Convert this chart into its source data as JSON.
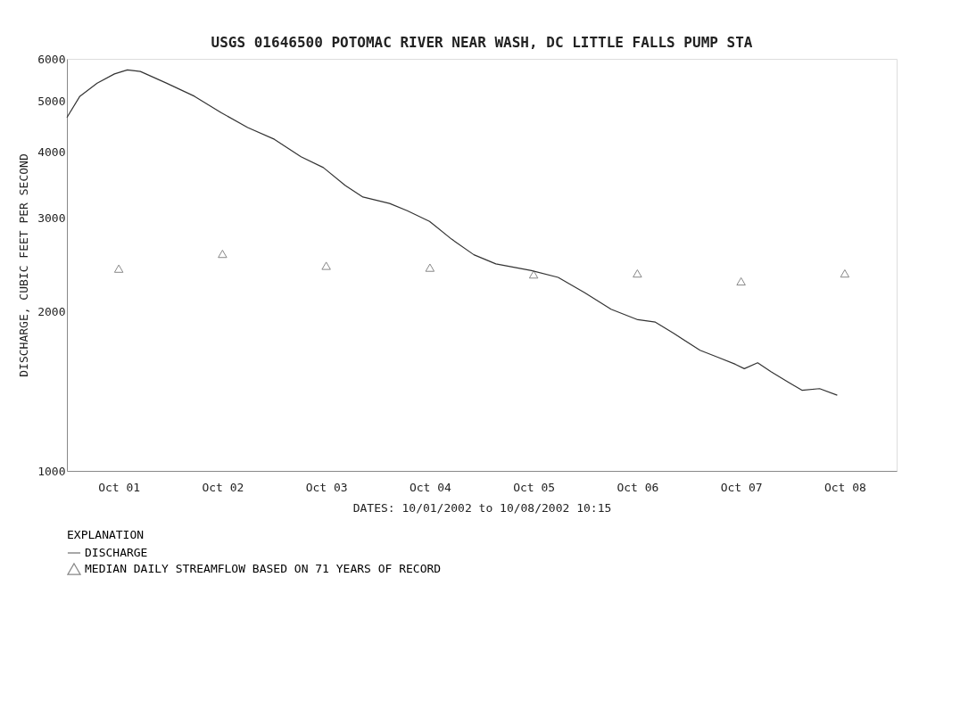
{
  "chart_data": {
    "type": "line",
    "title": "USGS 01646500 POTOMAC RIVER NEAR WASH, DC LITTLE FALLS PUMP STA",
    "xlabel": "DATES: 10/01/2002 to 10/08/2002 10:15",
    "ylabel": "DISCHARGE, CUBIC FEET PER SECOND",
    "legend_title": "EXPLANATION",
    "log": "y",
    "xlim": [
      "2002-10-01T00:00",
      "2002-10-09T00:00"
    ],
    "xticks": [
      {
        "value": "2002-10-01T12:00",
        "label": "Oct 01"
      },
      {
        "value": "2002-10-02T12:00",
        "label": "Oct 02"
      },
      {
        "value": "2002-10-03T12:00",
        "label": "Oct 03"
      },
      {
        "value": "2002-10-04T12:00",
        "label": "Oct 04"
      },
      {
        "value": "2002-10-05T12:00",
        "label": "Oct 05"
      },
      {
        "value": "2002-10-06T12:00",
        "label": "Oct 06"
      },
      {
        "value": "2002-10-07T12:00",
        "label": "Oct 07"
      },
      {
        "value": "2002-10-08T12:00",
        "label": "Oct 08"
      }
    ],
    "ylim": [
      1000,
      6000
    ],
    "yticks": [
      1000,
      2000,
      3000,
      4000,
      5000,
      6000
    ],
    "grid": false,
    "legend": "bottom left",
    "series": [
      {
        "name": "DISCHARGE",
        "line_style": "solid",
        "color": "#333333",
        "x": [
          "2002-10-01T00:00",
          "2002-10-01T03:00",
          "2002-10-01T07:00",
          "2002-10-01T11:00",
          "2002-10-01T14:00",
          "2002-10-01T17:00",
          "2002-10-01T23:00",
          "2002-10-02T05:30",
          "2002-10-02T11:40",
          "2002-10-02T17:50",
          "2002-10-03T00:00",
          "2002-10-03T06:10",
          "2002-10-03T11:20",
          "2002-10-03T16:25",
          "2002-10-03T20:30",
          "2002-10-04T02:40",
          "2002-10-04T06:45",
          "2002-10-04T11:55",
          "2002-10-04T17:00",
          "2002-10-04T22:10",
          "2002-10-05T03:15",
          "2002-10-05T11:30",
          "2002-10-05T17:40",
          "2002-10-05T23:50",
          "2002-10-06T05:55",
          "2002-10-06T12:05",
          "2002-10-06T16:10",
          "2002-10-06T20:20",
          "2002-10-07T02:30",
          "2002-10-07T06:35",
          "2002-10-07T10:40",
          "2002-10-07T12:45",
          "2002-10-07T15:50",
          "2002-10-07T18:55",
          "2002-10-07T23:00",
          "2002-10-08T02:05",
          "2002-10-08T06:10",
          "2002-10-08T10:15"
        ],
        "values": [
          4650,
          5100,
          5400,
          5620,
          5720,
          5680,
          5400,
          5100,
          4750,
          4450,
          4230,
          3920,
          3740,
          3460,
          3290,
          3200,
          3100,
          2960,
          2740,
          2560,
          2460,
          2390,
          2320,
          2170,
          2020,
          1930,
          1910,
          1820,
          1690,
          1640,
          1590,
          1560,
          1600,
          1540,
          1470,
          1420,
          1430,
          1390
        ]
      },
      {
        "name": "MEDIAN DAILY STREAMFLOW BASED ON 71 YEARS OF RECORD",
        "type": "scatter",
        "marker": "triangle",
        "color": "#555555",
        "x": [
          "2002-10-01T12:00",
          "2002-10-02T12:00",
          "2002-10-03T12:00",
          "2002-10-04T12:00",
          "2002-10-05T12:00",
          "2002-10-06T12:00",
          "2002-10-07T12:00",
          "2002-10-08T12:00"
        ],
        "values": [
          2410,
          2570,
          2440,
          2420,
          2350,
          2360,
          2280,
          2360
        ]
      }
    ]
  }
}
